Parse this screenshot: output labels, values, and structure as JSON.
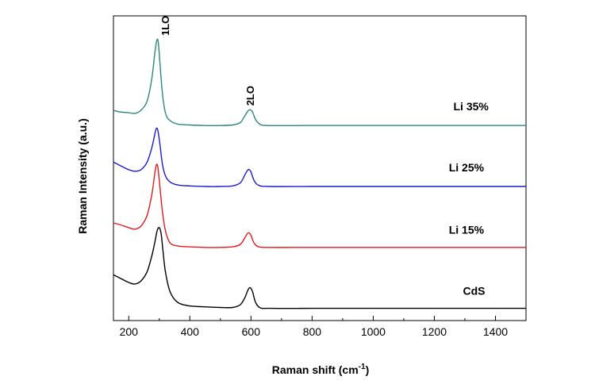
{
  "chart_data": {
    "type": "line",
    "title": "",
    "xlabel": "Raman shift (cm",
    "xlabel_sup": "-1",
    "xlabel_close": ")",
    "ylabel": "Raman Intensity (a.u.)",
    "xlim": [
      150,
      1500
    ],
    "ylim": [
      0,
      10
    ],
    "x_ticks": [
      200,
      400,
      600,
      800,
      1000,
      1200,
      1400
    ],
    "x_tick_labels": [
      "200",
      "400",
      "600",
      "800",
      "1000",
      "1200",
      "1400"
    ],
    "y_ticks_labeled": false,
    "grid": false,
    "legend": "none",
    "annotations": [
      {
        "text": "1LO",
        "x": 300
      },
      {
        "text": "2LO",
        "x": 597
      }
    ],
    "series": [
      {
        "name": "CdS",
        "color": "#000000",
        "x": [
          150,
          170,
          200,
          220,
          240,
          260,
          275,
          285,
          293,
          300,
          306,
          312,
          320,
          335,
          360,
          400,
          450,
          500,
          540,
          565,
          580,
          590,
          597,
          605,
          615,
          630,
          660,
          800,
          1000,
          1200,
          1500
        ],
        "y": [
          1.5,
          1.4,
          1.25,
          1.2,
          1.3,
          1.6,
          2.1,
          2.55,
          2.95,
          3.05,
          2.85,
          2.3,
          1.6,
          0.95,
          0.6,
          0.48,
          0.45,
          0.43,
          0.43,
          0.52,
          0.75,
          1.0,
          1.08,
          0.95,
          0.6,
          0.42,
          0.4,
          0.4,
          0.4,
          0.4,
          0.4
        ]
      },
      {
        "name": "Li 15%",
        "color": "#e31a1c",
        "x": [
          150,
          170,
          200,
          220,
          240,
          260,
          275,
          285,
          290,
          295,
          302,
          310,
          320,
          335,
          360,
          400,
          450,
          500,
          540,
          565,
          580,
          588,
          593,
          600,
          610,
          625,
          660,
          800,
          1000,
          1200,
          1500
        ],
        "y": [
          3.2,
          3.15,
          3.05,
          3.0,
          3.1,
          3.45,
          4.1,
          4.8,
          5.1,
          5.05,
          4.4,
          3.6,
          2.95,
          2.55,
          2.45,
          2.42,
          2.4,
          2.4,
          2.42,
          2.5,
          2.72,
          2.85,
          2.88,
          2.8,
          2.55,
          2.42,
          2.4,
          2.4,
          2.4,
          2.4,
          2.4
        ]
      },
      {
        "name": "Li 25%",
        "color": "#1a1ad4",
        "x": [
          150,
          170,
          200,
          220,
          240,
          260,
          275,
          285,
          290,
          295,
          302,
          310,
          320,
          335,
          360,
          400,
          450,
          500,
          540,
          565,
          580,
          588,
          593,
          600,
          610,
          625,
          660,
          800,
          1000,
          1200,
          1500
        ],
        "y": [
          5.2,
          5.1,
          4.95,
          4.9,
          4.95,
          5.2,
          5.65,
          6.1,
          6.3,
          6.25,
          5.8,
          5.15,
          4.75,
          4.55,
          4.45,
          4.42,
          4.4,
          4.4,
          4.42,
          4.52,
          4.78,
          4.92,
          4.96,
          4.88,
          4.6,
          4.44,
          4.4,
          4.4,
          4.4,
          4.4,
          4.4
        ]
      },
      {
        "name": "Li 35%",
        "color": "#2a8a7a",
        "x": [
          150,
          170,
          200,
          220,
          240,
          260,
          275,
          285,
          292,
          297,
          304,
          312,
          322,
          337,
          360,
          400,
          450,
          500,
          540,
          565,
          580,
          590,
          597,
          605,
          615,
          630,
          660,
          800,
          1000,
          1200,
          1500
        ],
        "y": [
          6.9,
          6.85,
          6.82,
          6.8,
          6.9,
          7.2,
          7.9,
          8.75,
          9.2,
          9.1,
          8.2,
          7.3,
          6.75,
          6.55,
          6.45,
          6.42,
          6.4,
          6.4,
          6.42,
          6.5,
          6.72,
          6.88,
          6.92,
          6.85,
          6.6,
          6.44,
          6.4,
          6.4,
          6.4,
          6.4,
          6.4
        ]
      }
    ],
    "series_label_positions": [
      {
        "x": 1330,
        "y": 0.85
      },
      {
        "x": 1305,
        "y": 2.85
      },
      {
        "x": 1305,
        "y": 4.9
      },
      {
        "x": 1320,
        "y": 6.9
      }
    ]
  }
}
